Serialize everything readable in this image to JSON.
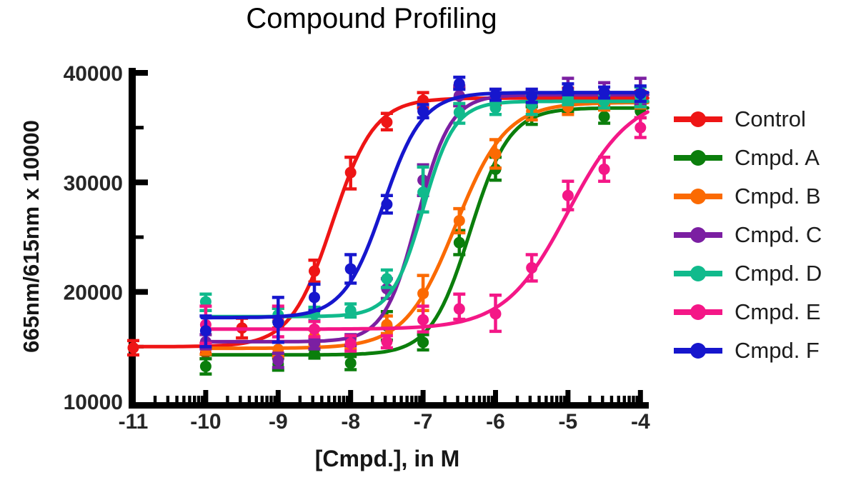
{
  "chart_data": {
    "type": "line",
    "title": "Compound Profiling",
    "xlabel": "[Cmpd.], in M",
    "ylabel": "665nm/615nm x 10000",
    "x_unit": "log10 molar concentration",
    "xlim": [
      -11.35,
      -3.85
    ],
    "ylim": [
      10000,
      40000
    ],
    "xticks": [
      -11,
      -10,
      -9,
      -8,
      -7,
      -6,
      -5,
      -4
    ],
    "xticklabels": [
      "-11",
      "-10",
      "-9",
      "-8",
      "-7",
      "-6",
      "-5",
      "-4"
    ],
    "yticks": [
      10000,
      20000,
      30000,
      40000
    ],
    "yticklabels": [
      "10000",
      "20000",
      "30000",
      "40000"
    ],
    "yminorticks": [
      15000,
      25000,
      35000
    ],
    "x_scale": "log-minor-ticks",
    "grid": false,
    "legend_position": "right",
    "axis_color": "#000000",
    "tick_label_color": "#262626",
    "series": [
      {
        "name": "Control",
        "color": "#ee1515",
        "marker": "circle",
        "fit": {
          "bottom": 15000,
          "top": 37700,
          "logec50": -8.25,
          "hill": 1.5
        },
        "curve_range": [
          -11.03,
          -3.9
        ],
        "points": [
          [
            -11,
            14900,
            14250,
            15550
          ],
          [
            -10,
            14450,
            13900,
            15100
          ],
          [
            -9.5,
            16700,
            15800,
            17600
          ],
          [
            -9,
            17600,
            16700,
            18500
          ],
          [
            -8.5,
            21900,
            20900,
            22900
          ],
          [
            -8,
            30900,
            29400,
            32300
          ],
          [
            -7.5,
            35500,
            34800,
            36300
          ],
          [
            -7,
            37500,
            36800,
            38200
          ],
          [
            -6.5,
            37900,
            37000,
            38600
          ],
          [
            -6,
            37600,
            37100,
            38100
          ],
          [
            -5.5,
            37500,
            37000,
            38000
          ],
          [
            -5,
            38000,
            37400,
            38600
          ],
          [
            -4.5,
            37500,
            37000,
            38000
          ],
          [
            -4,
            37700,
            37100,
            38300
          ]
        ]
      },
      {
        "name": "Cmpd. A",
        "color": "#0b7e0c",
        "marker": "circle",
        "fit": {
          "bottom": 14250,
          "top": 36800,
          "logec50": -6.35,
          "hill": 1.6
        },
        "curve_range": [
          -10.05,
          -3.9
        ],
        "points": [
          [
            -10,
            13200,
            12500,
            13900
          ],
          [
            -9,
            13400,
            12850,
            13950
          ],
          [
            -8.5,
            14350,
            13950,
            14750
          ],
          [
            -8,
            13500,
            12900,
            14100
          ],
          [
            -7.5,
            16900,
            15600,
            18200
          ],
          [
            -7,
            15400,
            14700,
            16100
          ],
          [
            -6.5,
            24500,
            23400,
            25600
          ],
          [
            -6,
            31200,
            30200,
            32300
          ],
          [
            -5.5,
            36100,
            35300,
            36900
          ],
          [
            -5,
            37000,
            36400,
            37600
          ],
          [
            -4.5,
            36000,
            35400,
            36700
          ],
          [
            -4,
            36500,
            35900,
            37100
          ]
        ]
      },
      {
        "name": "Cmpd. B",
        "color": "#fb6a02",
        "marker": "circle",
        "fit": {
          "bottom": 14850,
          "top": 37300,
          "logec50": -6.55,
          "hill": 1.25
        },
        "curve_range": [
          -10.05,
          -3.9
        ],
        "points": [
          [
            -10,
            14800,
            14300,
            15300
          ],
          [
            -9,
            14750,
            14100,
            15400
          ],
          [
            -8.5,
            15900,
            15250,
            16550
          ],
          [
            -8,
            15300,
            14800,
            15800
          ],
          [
            -7.5,
            17000,
            16200,
            17800
          ],
          [
            -7,
            19850,
            18300,
            21500
          ],
          [
            -6.5,
            26500,
            25400,
            27600
          ],
          [
            -6,
            32600,
            31300,
            33900
          ],
          [
            -5.5,
            36500,
            35700,
            37300
          ],
          [
            -5,
            36900,
            36200,
            37600
          ],
          [
            -4.5,
            37200,
            36600,
            37800
          ],
          [
            -4,
            37400,
            36800,
            38000
          ]
        ]
      },
      {
        "name": "Cmpd. C",
        "color": "#7b1fa2",
        "marker": "circle",
        "fit": {
          "bottom": 15450,
          "top": 38000,
          "logec50": -7.08,
          "hill": 1.9
        },
        "curve_range": [
          -10.05,
          -3.9
        ],
        "points": [
          [
            -10,
            15450,
            14800,
            16100
          ],
          [
            -9,
            13750,
            13100,
            14400
          ],
          [
            -8.5,
            15300,
            14800,
            15800
          ],
          [
            -8,
            15600,
            15100,
            16100
          ],
          [
            -7.5,
            20300,
            19400,
            21200
          ],
          [
            -7,
            30200,
            28800,
            31600
          ],
          [
            -6.5,
            37900,
            37000,
            38800
          ],
          [
            -6,
            37900,
            37300,
            38500
          ],
          [
            -5.5,
            37900,
            37300,
            38500
          ],
          [
            -5,
            38500,
            37600,
            39500
          ],
          [
            -4.5,
            38300,
            37500,
            39100
          ],
          [
            -4,
            38200,
            37200,
            39500
          ]
        ]
      },
      {
        "name": "Cmpd. D",
        "color": "#10ba8c",
        "marker": "circle",
        "fit": {
          "bottom": 17750,
          "top": 37400,
          "logec50": -7.0,
          "hill": 2.0
        },
        "curve_range": [
          -10.05,
          -3.9
        ],
        "points": [
          [
            -10,
            19100,
            18300,
            19800
          ],
          [
            -9,
            17900,
            17300,
            18500
          ],
          [
            -8.5,
            18000,
            17400,
            18600
          ],
          [
            -8,
            18300,
            17700,
            18900
          ],
          [
            -7.5,
            21200,
            20400,
            22000
          ],
          [
            -7,
            29100,
            27300,
            31400
          ],
          [
            -6.5,
            36400,
            35400,
            37200
          ],
          [
            -6,
            36800,
            36200,
            37400
          ],
          [
            -5.5,
            37100,
            36200,
            38000
          ],
          [
            -5,
            37700,
            37100,
            38300
          ],
          [
            -4.5,
            37400,
            36800,
            38000
          ],
          [
            -4,
            37800,
            36900,
            38700
          ]
        ]
      },
      {
        "name": "Cmpd. E",
        "color": "#f41787",
        "marker": "circle",
        "fit": {
          "bottom": 16600,
          "top": 38000,
          "logec50": -5.0,
          "hill": 1.0
        },
        "curve_range": [
          -10.05,
          -3.9
        ],
        "points": [
          [
            -10,
            17000,
            15300,
            18700
          ],
          [
            -9,
            17300,
            15900,
            18700
          ],
          [
            -8.5,
            16600,
            15900,
            17300
          ],
          [
            -8,
            15300,
            14600,
            16000
          ],
          [
            -7.5,
            15450,
            14900,
            16000
          ],
          [
            -7,
            17450,
            16350,
            18700
          ],
          [
            -6.5,
            18450,
            17500,
            19800
          ],
          [
            -6,
            18000,
            16400,
            19700
          ],
          [
            -5.5,
            22200,
            21000,
            23400
          ],
          [
            -5,
            28800,
            27500,
            30100
          ],
          [
            -4.5,
            31200,
            30100,
            32300
          ],
          [
            -4,
            35000,
            34100,
            35900
          ]
        ]
      },
      {
        "name": "Cmpd. F",
        "color": "#1616cd",
        "marker": "circle",
        "fit": {
          "bottom": 17650,
          "top": 38200,
          "logec50": -7.55,
          "hill": 1.6
        },
        "curve_range": [
          -10.05,
          -3.9
        ],
        "points": [
          [
            -10,
            16450,
            15000,
            17800
          ],
          [
            -9,
            17200,
            15400,
            19500
          ],
          [
            -8.5,
            19500,
            18300,
            20700
          ],
          [
            -8,
            22100,
            20800,
            23400
          ],
          [
            -7.5,
            28000,
            27200,
            28800
          ],
          [
            -7,
            36500,
            35900,
            37100
          ],
          [
            -6.5,
            39000,
            38500,
            39600
          ],
          [
            -6,
            38000,
            37500,
            38500
          ],
          [
            -5.5,
            37900,
            37300,
            38500
          ],
          [
            -5,
            38500,
            38000,
            39000
          ],
          [
            -4.5,
            38200,
            37700,
            38700
          ],
          [
            -4,
            38100,
            37400,
            38800
          ]
        ]
      }
    ]
  }
}
